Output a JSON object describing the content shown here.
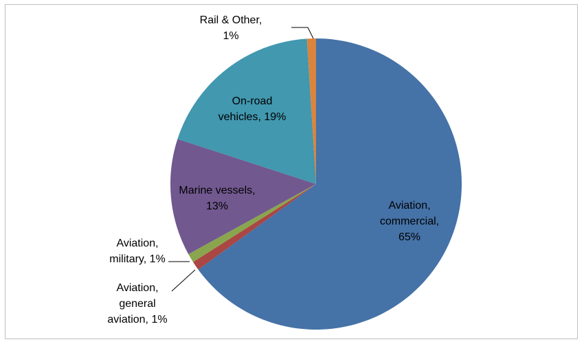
{
  "chart_data": {
    "type": "pie",
    "values": [
      65,
      1,
      1,
      13,
      19,
      1
    ],
    "value_labels": [
      [
        "Aviation,",
        "commercial,",
        "65%"
      ],
      [
        "Aviation,",
        "general",
        "aviation, 1%"
      ],
      [
        "Aviation,",
        "military, 1%"
      ],
      [
        "Marine vessels,",
        "13%"
      ],
      [
        "On-road",
        "vehicles, 19%"
      ],
      [
        "Rail & Other,",
        "1%"
      ]
    ],
    "colors": [
      "#4572a7",
      "#aa4643",
      "#89a54e",
      "#71588f",
      "#4198af",
      "#db843d"
    ]
  }
}
